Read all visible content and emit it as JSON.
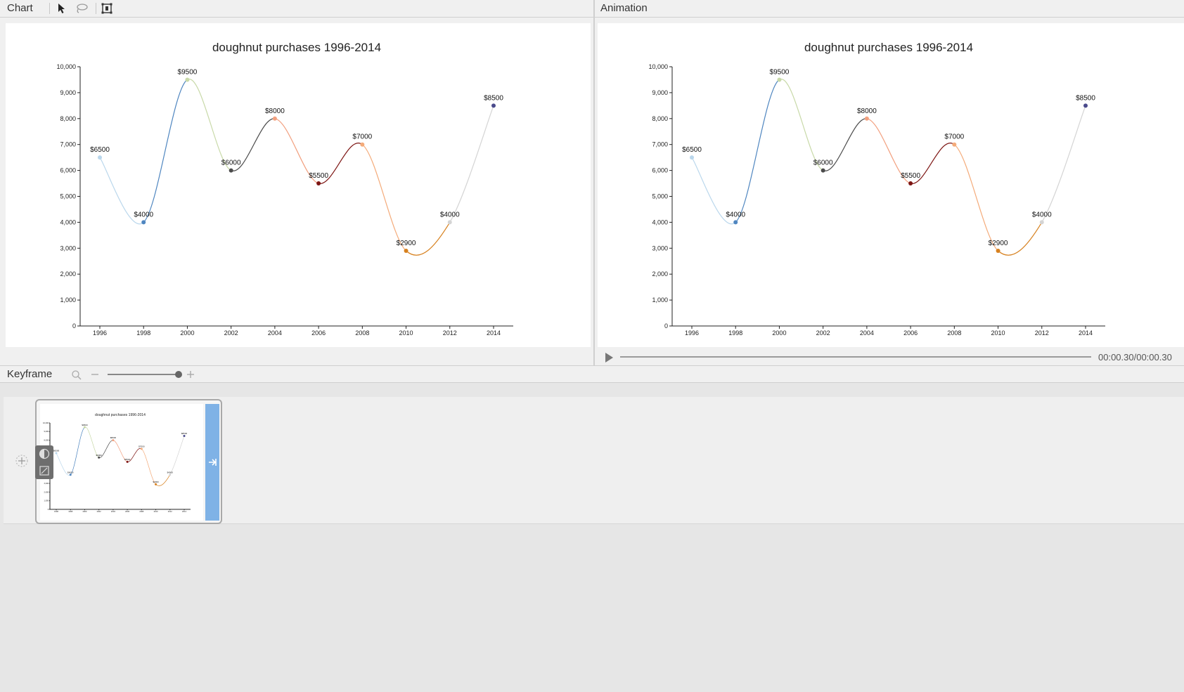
{
  "chart_panel": {
    "title": "Chart",
    "tools": [
      "pointer-icon",
      "lasso-icon",
      "crop-icon"
    ]
  },
  "animation_panel": {
    "title": "Animation",
    "time_display": "00:00.30/00:00.30"
  },
  "keyframe_panel": {
    "title": "Keyframe",
    "zoom_level": 1.0
  },
  "colors": {
    "series_segment_colors": [
      "#bad7ec",
      "#4f86c0",
      "#c8d9a8",
      "#4b4b4b",
      "#f2a07f",
      "#7d1513",
      "#f4ab7a",
      "#d7811f",
      "#d4d4d4",
      "#4a4a8c"
    ],
    "accent": "#7fb2e6"
  },
  "chart_data": {
    "type": "line",
    "title": "doughnut purchases 1996-2014",
    "x": [
      "1996",
      "1998",
      "2000",
      "2002",
      "2004",
      "2006",
      "2008",
      "2010",
      "2012",
      "2014"
    ],
    "values": [
      6500,
      4000,
      9500,
      6000,
      8000,
      5500,
      7000,
      2900,
      4000,
      8500
    ],
    "data_labels": [
      "$6500",
      "$4000",
      "$9500",
      "$6000",
      "$8000",
      "$5500",
      "$7000",
      "$2900",
      "$4000",
      "$8500"
    ],
    "y_ticks": [
      "0",
      "1,000",
      "2,000",
      "3,000",
      "4,000",
      "5,000",
      "6,000",
      "7,000",
      "8,000",
      "9,000",
      "10,000"
    ],
    "ylim": [
      0,
      10000
    ],
    "curve": "smooth",
    "grid": false,
    "xlabel": "",
    "ylabel": ""
  }
}
